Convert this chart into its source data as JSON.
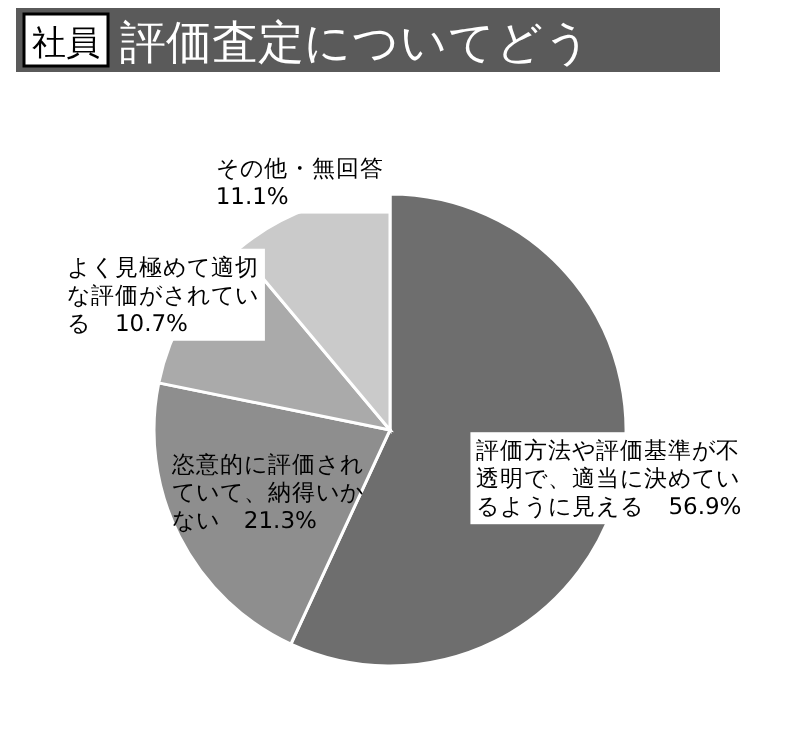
{
  "chart_data": {
    "type": "pie",
    "subtitle": "社員",
    "title": "評価査定についてどう",
    "categories": [
      "評価方法や評価基準が不透明で、適当に決めているように見える",
      "恣意的に評価されていて、納得いかない",
      "よく見極めて適切な評価がされている",
      "その他・無回答"
    ],
    "values": [
      56.9,
      21.3,
      10.7,
      11.1
    ],
    "colors": [
      "#6e6e6e",
      "#8e8e8e",
      "#aaaaaa",
      "#cacaca"
    ],
    "value_labels": [
      "56.9%",
      "21.3%",
      "10.7%",
      "11.1%"
    ]
  }
}
